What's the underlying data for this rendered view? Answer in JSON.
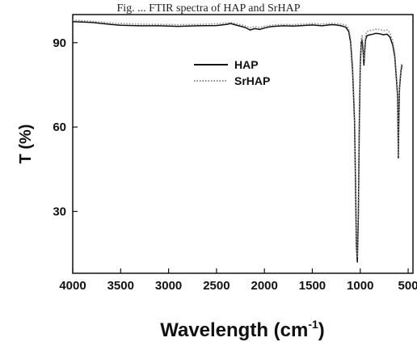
{
  "caption_fragment": "Fig. ... FTIR spectra of HAP and SrHAP",
  "chart_data": {
    "type": "line",
    "xlabel": "Wavelength (cm",
    "xlabel_superscript": "-1",
    "xlabel_close": ")",
    "ylabel": "T (%)",
    "xlim": [
      4000,
      450
    ],
    "ylim": [
      8,
      100
    ],
    "x_reversed": true,
    "xticks": [
      4000,
      3500,
      3000,
      2500,
      2000,
      1500,
      1000,
      500
    ],
    "yticks": [
      30,
      60,
      90
    ],
    "legend_position": "upper-center",
    "series": [
      {
        "name": "HAP",
        "style": "solid",
        "color": "#111111",
        "x": [
          4000,
          3800,
          3600,
          3500,
          3300,
          3100,
          2900,
          2700,
          2500,
          2400,
          2350,
          2300,
          2200,
          2150,
          2100,
          2050,
          2000,
          1950,
          1900,
          1800,
          1700,
          1600,
          1500,
          1400,
          1300,
          1250,
          1200,
          1150,
          1120,
          1100,
          1080,
          1060,
          1050,
          1040,
          1030,
          1020,
          1010,
          1000,
          990,
          980,
          970,
          962,
          955,
          945,
          930,
          900,
          870,
          840,
          800,
          760,
          720,
          690,
          660,
          640,
          620,
          610,
          603,
          598,
          590,
          575,
          565
        ],
        "y": [
          97.5,
          97.2,
          96.5,
          96.2,
          96.0,
          96.0,
          95.8,
          96.0,
          96.1,
          96.5,
          96.8,
          96.3,
          95.4,
          94.5,
          95.0,
          94.7,
          95.2,
          95.6,
          95.8,
          96.0,
          95.9,
          96.1,
          96.3,
          96.0,
          96.4,
          96.3,
          96.0,
          95.5,
          94.0,
          90.0,
          80.0,
          62.0,
          42.0,
          18.0,
          12.0,
          28.0,
          60.0,
          82.0,
          90.0,
          91.0,
          87.0,
          82.0,
          86.0,
          91.0,
          92.5,
          92.8,
          93.0,
          93.3,
          93.2,
          92.8,
          93.0,
          92.0,
          89.0,
          85.0,
          76.0,
          71.0,
          49.0,
          60.0,
          74.0,
          80.0,
          82.0
        ]
      },
      {
        "name": "SrHAP",
        "style": "dotted",
        "color": "#8a8a8a",
        "x": [
          4000,
          3800,
          3600,
          3500,
          3300,
          3100,
          2900,
          2700,
          2500,
          2400,
          2350,
          2300,
          2200,
          2150,
          2100,
          2050,
          2000,
          1950,
          1900,
          1800,
          1700,
          1600,
          1500,
          1400,
          1300,
          1250,
          1200,
          1150,
          1120,
          1100,
          1080,
          1060,
          1050,
          1040,
          1030,
          1020,
          1010,
          1000,
          990,
          980,
          970,
          962,
          955,
          945,
          930,
          900,
          870,
          840,
          800,
          760,
          720,
          690,
          660,
          640,
          620,
          610,
          603,
          598,
          590,
          575,
          565
        ],
        "y": [
          98.0,
          97.6,
          97.0,
          96.8,
          96.6,
          96.5,
          96.4,
          96.5,
          96.7,
          97.0,
          97.2,
          96.8,
          96.0,
          95.3,
          95.7,
          95.4,
          95.8,
          96.1,
          96.3,
          96.5,
          96.4,
          96.6,
          96.8,
          96.6,
          96.9,
          96.8,
          96.6,
          96.2,
          95.0,
          91.5,
          82.0,
          64.0,
          44.0,
          20.0,
          14.0,
          30.0,
          62.0,
          84.0,
          91.5,
          92.5,
          89.0,
          84.0,
          88.0,
          92.5,
          94.0,
          94.3,
          94.5,
          94.8,
          94.7,
          94.3,
          94.5,
          93.5,
          90.5,
          86.5,
          77.5,
          72.5,
          50.0,
          61.0,
          75.0,
          81.0,
          83.0
        ]
      }
    ]
  }
}
